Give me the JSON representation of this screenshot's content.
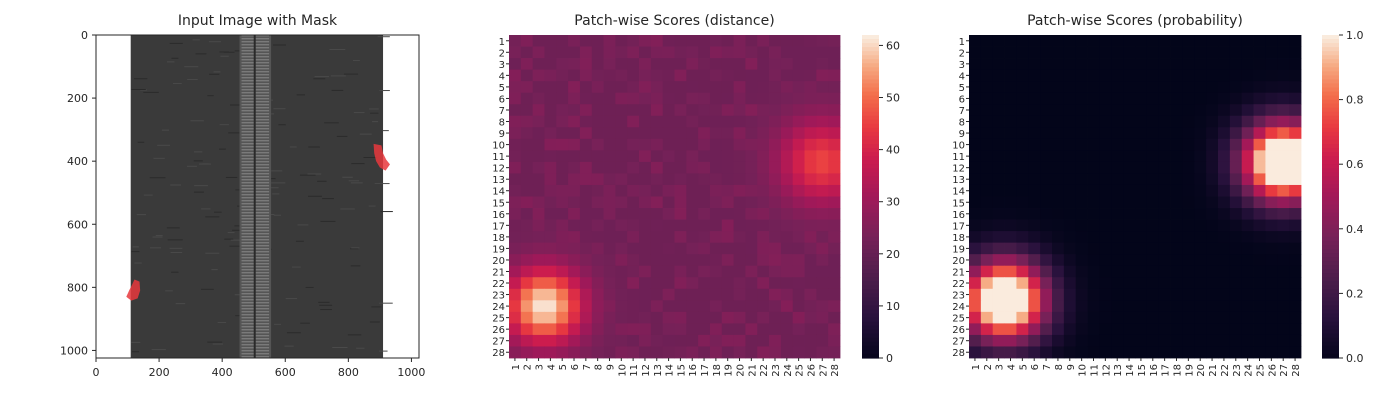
{
  "chart_data": [
    {
      "type": "image",
      "title": "Input Image with Mask",
      "xlim": [
        0,
        1024
      ],
      "ylim": [
        1024,
        0
      ],
      "xticks": [
        0,
        200,
        400,
        600,
        800,
        1000
      ],
      "yticks": [
        0,
        200,
        400,
        600,
        800,
        1000
      ],
      "content": "zipper photo with red defect mask regions",
      "mask_regions": [
        {
          "name": "right-edge-defect",
          "x_range": [
            880,
            930
          ],
          "y_range": [
            345,
            430
          ]
        },
        {
          "name": "left-edge-defect",
          "x_range": [
            95,
            140
          ],
          "y_range": [
            775,
            840
          ]
        }
      ],
      "colors": {
        "mask": "#e8383d",
        "fabric": "#3a3a3a",
        "teeth": "#7a7a7a"
      }
    },
    {
      "type": "heatmap",
      "title": "Patch-wise Scores (distance)",
      "rows": 28,
      "cols": 28,
      "row_labels": [
        "1",
        "2",
        "3",
        "4",
        "5",
        "6",
        "7",
        "8",
        "9",
        "10",
        "11",
        "12",
        "13",
        "14",
        "15",
        "16",
        "17",
        "18",
        "19",
        "20",
        "21",
        "22",
        "23",
        "24",
        "25",
        "26",
        "27",
        "28"
      ],
      "col_labels": [
        "1",
        "2",
        "3",
        "4",
        "5",
        "6",
        "7",
        "8",
        "9",
        "10",
        "11",
        "12",
        "13",
        "14",
        "15",
        "16",
        "17",
        "18",
        "19",
        "20",
        "21",
        "22",
        "23",
        "24",
        "25",
        "26",
        "27",
        "28"
      ],
      "vmin": 0,
      "vmax": 62,
      "colorbar_ticks": [
        0,
        10,
        20,
        30,
        40,
        50,
        60
      ],
      "colormap": "rocket",
      "baseline": 22,
      "hotspots": [
        {
          "row": 24,
          "col": 3.5,
          "peak": 62,
          "spread": 2.3
        },
        {
          "row": 11.5,
          "col": 27,
          "peak": 46,
          "spread": 2.6
        }
      ]
    },
    {
      "type": "heatmap",
      "title": "Patch-wise Scores (probability)",
      "rows": 28,
      "cols": 28,
      "row_labels": [
        "1",
        "2",
        "3",
        "4",
        "5",
        "6",
        "7",
        "8",
        "9",
        "10",
        "11",
        "12",
        "13",
        "14",
        "15",
        "16",
        "17",
        "18",
        "19",
        "20",
        "21",
        "22",
        "23",
        "24",
        "25",
        "26",
        "27",
        "28"
      ],
      "col_labels": [
        "1",
        "2",
        "3",
        "4",
        "5",
        "6",
        "7",
        "8",
        "9",
        "10",
        "11",
        "12",
        "13",
        "14",
        "15",
        "16",
        "17",
        "18",
        "19",
        "20",
        "21",
        "22",
        "23",
        "24",
        "25",
        "26",
        "27",
        "28"
      ],
      "vmin": 0.0,
      "vmax": 1.0,
      "colorbar_ticks": [
        "0.0",
        "0.2",
        "0.4",
        "0.6",
        "0.8",
        "1.0"
      ],
      "colormap": "rocket",
      "baseline": 0.0,
      "hotspots": [
        {
          "row": 23.5,
          "col": 3.5,
          "peak": 1.0,
          "spread": 2.4
        },
        {
          "row": 11.5,
          "col": 27,
          "peak": 1.0,
          "spread": 2.4
        }
      ]
    }
  ]
}
